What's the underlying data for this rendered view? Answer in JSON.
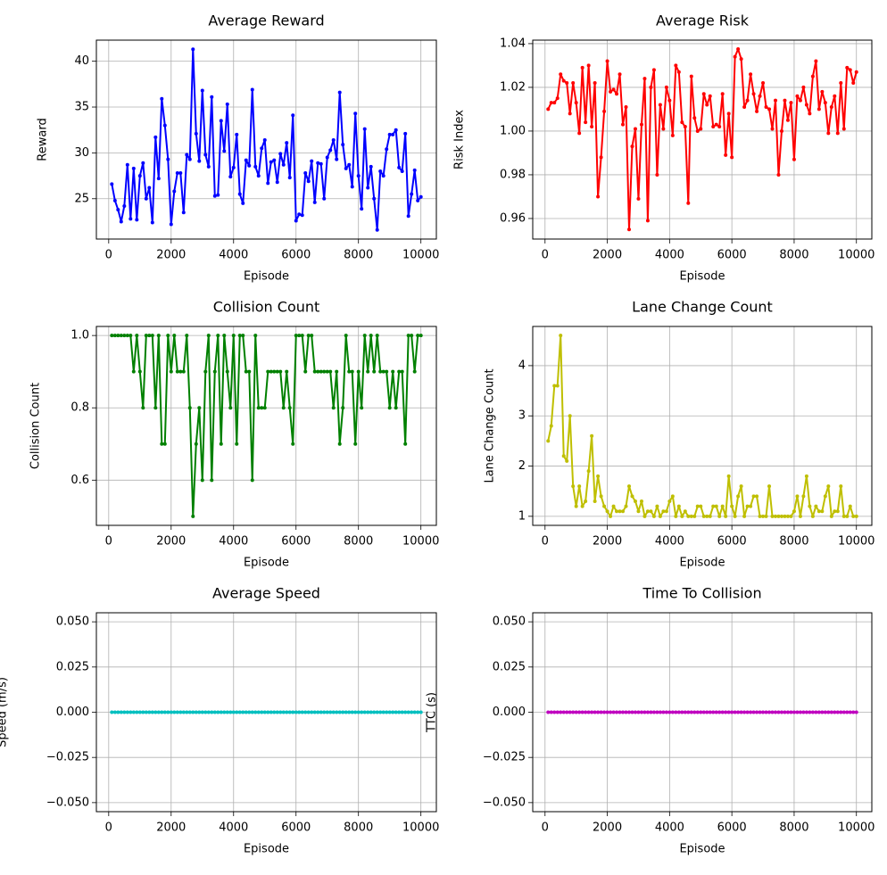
{
  "chart_data": [
    {
      "type": "line",
      "title": "Average Reward",
      "xlabel": "Episode",
      "ylabel": "Reward",
      "color": "#0000ff",
      "grid": true,
      "x": [
        100,
        200,
        300,
        400,
        500,
        600,
        700,
        800,
        900,
        1000,
        1100,
        1200,
        1300,
        1400,
        1500,
        1600,
        1700,
        1800,
        1900,
        2000,
        2100,
        2200,
        2300,
        2400,
        2500,
        2600,
        2700,
        2800,
        2900,
        3000,
        3100,
        3200,
        3300,
        3400,
        3500,
        3600,
        3700,
        3800,
        3900,
        4000,
        4100,
        4200,
        4300,
        4400,
        4500,
        4600,
        4700,
        4800,
        4900,
        5000,
        5100,
        5200,
        5300,
        5400,
        5500,
        5600,
        5700,
        5800,
        5900,
        6000,
        6100,
        6200,
        6300,
        6400,
        6500,
        6600,
        6700,
        6800,
        6900,
        7000,
        7100,
        7200,
        7300,
        7400,
        7500,
        7600,
        7700,
        7800,
        7900,
        8000,
        8100,
        8200,
        8300,
        8400,
        8500,
        8600,
        8700,
        8800,
        8900,
        9000,
        9100,
        9200,
        9300,
        9400,
        9500,
        9600,
        9700,
        9800,
        9900,
        10000
      ],
      "values": [
        26.6,
        24.8,
        23.8,
        22.5,
        24.2,
        28.7,
        22.8,
        28.3,
        22.7,
        27.5,
        28.9,
        25.0,
        26.2,
        22.4,
        31.7,
        27.2,
        35.9,
        33.0,
        29.3,
        22.2,
        25.8,
        27.8,
        27.8,
        23.5,
        29.8,
        29.3,
        41.3,
        32.1,
        29.1,
        36.8,
        29.8,
        28.5,
        36.1,
        25.3,
        25.4,
        33.5,
        30.2,
        35.3,
        27.4,
        28.4,
        32.0,
        25.5,
        24.5,
        29.2,
        28.6,
        36.9,
        28.5,
        27.5,
        30.5,
        31.4,
        26.7,
        29.0,
        29.2,
        26.8,
        29.9,
        28.7,
        31.1,
        27.3,
        34.1,
        22.6,
        23.3,
        23.2,
        27.8,
        26.9,
        29.1,
        24.6,
        28.9,
        28.8,
        25.0,
        29.5,
        30.3,
        31.4,
        29.3,
        36.6,
        30.9,
        28.3,
        28.7,
        26.3,
        34.3,
        27.5,
        23.9,
        32.6,
        26.2,
        28.5,
        25.0,
        21.6,
        28.0,
        27.5,
        30.4,
        32.0,
        32.0,
        32.5,
        28.4,
        28.0,
        32.1,
        23.1,
        25.5,
        28.1,
        24.8,
        25.2
      ],
      "xlim": [
        -395,
        10495
      ],
      "xticks": [
        0,
        2000,
        4000,
        6000,
        8000,
        10000
      ],
      "ylim": [
        20.6,
        42.3
      ],
      "yticks": [
        25,
        30,
        35,
        40
      ]
    },
    {
      "type": "line",
      "title": "Average Risk",
      "xlabel": "Episode",
      "ylabel": "Risk Index",
      "color": "#ff0000",
      "grid": true,
      "x": [
        100,
        200,
        300,
        400,
        500,
        600,
        700,
        800,
        900,
        1000,
        1100,
        1200,
        1300,
        1400,
        1500,
        1600,
        1700,
        1800,
        1900,
        2000,
        2100,
        2200,
        2300,
        2400,
        2500,
        2600,
        2700,
        2800,
        2900,
        3000,
        3100,
        3200,
        3300,
        3400,
        3500,
        3600,
        3700,
        3800,
        3900,
        4000,
        4100,
        4200,
        4300,
        4400,
        4500,
        4600,
        4700,
        4800,
        4900,
        5000,
        5100,
        5200,
        5300,
        5400,
        5500,
        5600,
        5700,
        5800,
        5900,
        6000,
        6100,
        6200,
        6300,
        6400,
        6500,
        6600,
        6700,
        6800,
        6900,
        7000,
        7100,
        7200,
        7300,
        7400,
        7500,
        7600,
        7700,
        7800,
        7900,
        8000,
        8100,
        8200,
        8300,
        8400,
        8500,
        8600,
        8700,
        8800,
        8900,
        9000,
        9100,
        9200,
        9300,
        9400,
        9500,
        9600,
        9700,
        9800,
        9900,
        10000
      ],
      "values": [
        1.01,
        1.013,
        1.013,
        1.015,
        1.026,
        1.023,
        1.022,
        1.008,
        1.022,
        1.013,
        0.999,
        1.029,
        1.004,
        1.03,
        1.002,
        1.022,
        0.97,
        0.988,
        1.009,
        1.032,
        1.018,
        1.019,
        1.017,
        1.026,
        1.003,
        1.011,
        0.955,
        0.993,
        1.001,
        0.969,
        1.003,
        1.024,
        0.959,
        1.02,
        1.028,
        0.98,
        1.012,
        1.001,
        1.02,
        1.014,
        0.998,
        1.03,
        1.027,
        1.004,
        1.002,
        0.967,
        1.025,
        1.006,
        1.0,
        1.001,
        1.017,
        1.012,
        1.016,
        1.002,
        1.003,
        1.002,
        1.017,
        0.989,
        1.008,
        0.988,
        1.034,
        1.0375,
        1.033,
        1.011,
        1.014,
        1.026,
        1.017,
        1.009,
        1.016,
        1.022,
        1.011,
        1.01,
        1.001,
        1.014,
        0.98,
        1.0,
        1.014,
        1.005,
        1.013,
        0.987,
        1.016,
        1.014,
        1.02,
        1.012,
        1.008,
        1.025,
        1.032,
        1.01,
        1.018,
        1.013,
        0.999,
        1.011,
        1.016,
        0.999,
        1.022,
        1.001,
        1.029,
        1.028,
        1.022,
        1.027
      ],
      "xlim": [
        -395,
        10495
      ],
      "xticks": [
        0,
        2000,
        4000,
        6000,
        8000,
        10000
      ],
      "ylim": [
        0.9506,
        1.0416
      ],
      "yticks": [
        0.96,
        0.98,
        {
          "value": 1,
          "label": "1.00"
        },
        1.02,
        1.04
      ]
    },
    {
      "type": "line",
      "title": "Collision Count",
      "xlabel": "Episode",
      "ylabel": "Collision Count",
      "color": "#008000",
      "grid": true,
      "x": [
        100,
        200,
        300,
        400,
        500,
        600,
        700,
        800,
        900,
        1000,
        1100,
        1200,
        1300,
        1400,
        1500,
        1600,
        1700,
        1800,
        1900,
        2000,
        2100,
        2200,
        2300,
        2400,
        2500,
        2600,
        2700,
        2800,
        2900,
        3000,
        3100,
        3200,
        3300,
        3400,
        3500,
        3600,
        3700,
        3800,
        3900,
        4000,
        4100,
        4200,
        4300,
        4400,
        4500,
        4600,
        4700,
        4800,
        4900,
        5000,
        5100,
        5200,
        5300,
        5400,
        5500,
        5600,
        5700,
        5800,
        5900,
        6000,
        6100,
        6200,
        6300,
        6400,
        6500,
        6600,
        6700,
        6800,
        6900,
        7000,
        7100,
        7200,
        7300,
        7400,
        7500,
        7600,
        7700,
        7800,
        7900,
        8000,
        8100,
        8200,
        8300,
        8400,
        8500,
        8600,
        8700,
        8800,
        8900,
        9000,
        9100,
        9200,
        9300,
        9400,
        9500,
        9600,
        9700,
        9800,
        9900,
        10000
      ],
      "values": [
        1,
        1,
        1,
        1,
        1,
        1,
        1,
        0.9,
        1,
        0.9,
        0.8,
        1,
        1,
        1,
        0.8,
        1,
        0.7,
        0.7,
        1,
        0.9,
        1,
        0.9,
        0.9,
        0.9,
        1,
        0.8,
        0.5,
        0.7,
        0.8,
        0.6,
        0.9,
        1,
        0.6,
        0.9,
        1,
        0.7,
        1,
        0.9,
        0.8,
        1,
        0.7,
        1,
        1,
        0.9,
        0.9,
        0.6,
        1,
        0.8,
        0.8,
        0.8,
        0.9,
        0.9,
        0.9,
        0.9,
        0.9,
        0.8,
        0.9,
        0.8,
        0.7,
        1,
        1,
        1,
        0.9,
        1,
        1,
        0.9,
        0.9,
        0.9,
        0.9,
        0.9,
        0.9,
        0.8,
        0.9,
        0.7,
        0.8,
        1,
        0.9,
        0.9,
        0.7,
        0.9,
        0.8,
        1,
        0.9,
        1,
        0.9,
        1,
        0.9,
        0.9,
        0.9,
        0.8,
        0.9,
        0.8,
        0.9,
        0.9,
        0.7,
        1,
        1,
        0.9,
        1,
        1
      ],
      "xlim": [
        -395,
        10495
      ],
      "xticks": [
        0,
        2000,
        4000,
        6000,
        8000,
        10000
      ],
      "ylim": [
        0.475,
        1.025
      ],
      "yticks": [
        0.6,
        0.8,
        {
          "value": 1,
          "label": "1.0"
        }
      ]
    },
    {
      "type": "line",
      "title": "Lane Change Count",
      "xlabel": "Episode",
      "ylabel": "Lane Change Count",
      "color": "#bfbf00",
      "grid": true,
      "x": [
        100,
        200,
        300,
        400,
        500,
        600,
        700,
        800,
        900,
        1000,
        1100,
        1200,
        1300,
        1400,
        1500,
        1600,
        1700,
        1800,
        1900,
        2000,
        2100,
        2200,
        2300,
        2400,
        2500,
        2600,
        2700,
        2800,
        2900,
        3000,
        3100,
        3200,
        3300,
        3400,
        3500,
        3600,
        3700,
        3800,
        3900,
        4000,
        4100,
        4200,
        4300,
        4400,
        4500,
        4600,
        4700,
        4800,
        4900,
        5000,
        5100,
        5200,
        5300,
        5400,
        5500,
        5600,
        5700,
        5800,
        5900,
        6000,
        6100,
        6200,
        6300,
        6400,
        6500,
        6600,
        6700,
        6800,
        6900,
        7000,
        7100,
        7200,
        7300,
        7400,
        7500,
        7600,
        7700,
        7800,
        7900,
        8000,
        8100,
        8200,
        8300,
        8400,
        8500,
        8600,
        8700,
        8800,
        8900,
        9000,
        9100,
        9200,
        9300,
        9400,
        9500,
        9600,
        9700,
        9800,
        9900,
        10000
      ],
      "values": [
        2.5,
        2.8,
        3.6,
        3.6,
        4.6,
        2.2,
        2.1,
        3.0,
        1.6,
        1.2,
        1.6,
        1.2,
        1.3,
        1.9,
        2.6,
        1.3,
        1.8,
        1.4,
        1.2,
        1.1,
        1.0,
        1.2,
        1.1,
        1.1,
        1.1,
        1.2,
        1.6,
        1.4,
        1.3,
        1.1,
        1.3,
        1.0,
        1.1,
        1.1,
        1.0,
        1.2,
        1.0,
        1.1,
        1.1,
        1.3,
        1.4,
        1.0,
        1.2,
        1.0,
        1.1,
        1.0,
        1.0,
        1.0,
        1.2,
        1.2,
        1.0,
        1.0,
        1.0,
        1.2,
        1.2,
        1.0,
        1.2,
        1.0,
        1.8,
        1.2,
        1.0,
        1.4,
        1.6,
        1.0,
        1.2,
        1.2,
        1.4,
        1.4,
        1.0,
        1.0,
        1.0,
        1.6,
        1.0,
        1.0,
        1.0,
        1.0,
        1.0,
        1.0,
        1.0,
        1.1,
        1.4,
        1.0,
        1.4,
        1.8,
        1.2,
        1.0,
        1.2,
        1.1,
        1.1,
        1.4,
        1.6,
        1.0,
        1.1,
        1.1,
        1.6,
        1.0,
        1.0,
        1.2,
        1.0,
        1.0
      ],
      "xlim": [
        -395,
        10495
      ],
      "xticks": [
        0,
        2000,
        4000,
        6000,
        8000,
        10000
      ],
      "ylim": [
        0.82,
        4.78
      ],
      "yticks": [
        1,
        2,
        3,
        4
      ]
    },
    {
      "type": "line",
      "title": "Average Speed",
      "xlabel": "Episode",
      "ylabel": "Speed (m/s)",
      "color": "#00bfbf",
      "grid": true,
      "x": [
        100,
        200,
        300,
        400,
        500,
        600,
        700,
        800,
        900,
        1000,
        1100,
        1200,
        1300,
        1400,
        1500,
        1600,
        1700,
        1800,
        1900,
        2000,
        2100,
        2200,
        2300,
        2400,
        2500,
        2600,
        2700,
        2800,
        2900,
        3000,
        3100,
        3200,
        3300,
        3400,
        3500,
        3600,
        3700,
        3800,
        3900,
        4000,
        4100,
        4200,
        4300,
        4400,
        4500,
        4600,
        4700,
        4800,
        4900,
        5000,
        5100,
        5200,
        5300,
        5400,
        5500,
        5600,
        5700,
        5800,
        5900,
        6000,
        6100,
        6200,
        6300,
        6400,
        6500,
        6600,
        6700,
        6800,
        6900,
        7000,
        7100,
        7200,
        7300,
        7400,
        7500,
        7600,
        7700,
        7800,
        7900,
        8000,
        8100,
        8200,
        8300,
        8400,
        8500,
        8600,
        8700,
        8800,
        8900,
        9000,
        9100,
        9200,
        9300,
        9400,
        9500,
        9600,
        9700,
        9800,
        9900,
        10000
      ],
      "values": [
        0,
        0,
        0,
        0,
        0,
        0,
        0,
        0,
        0,
        0,
        0,
        0,
        0,
        0,
        0,
        0,
        0,
        0,
        0,
        0,
        0,
        0,
        0,
        0,
        0,
        0,
        0,
        0,
        0,
        0,
        0,
        0,
        0,
        0,
        0,
        0,
        0,
        0,
        0,
        0,
        0,
        0,
        0,
        0,
        0,
        0,
        0,
        0,
        0,
        0,
        0,
        0,
        0,
        0,
        0,
        0,
        0,
        0,
        0,
        0,
        0,
        0,
        0,
        0,
        0,
        0,
        0,
        0,
        0,
        0,
        0,
        0,
        0,
        0,
        0,
        0,
        0,
        0,
        0,
        0,
        0,
        0,
        0,
        0,
        0,
        0,
        0,
        0,
        0,
        0,
        0,
        0,
        0,
        0,
        0,
        0,
        0,
        0,
        0,
        0
      ],
      "xlim": [
        -395,
        10495
      ],
      "xticks": [
        0,
        2000,
        4000,
        6000,
        8000,
        10000
      ],
      "ylim": [
        -0.055,
        0.055
      ],
      "yticks": [
        {
          "value": -0.05,
          "label": "−0.050"
        },
        {
          "value": -0.025,
          "label": "−0.025"
        },
        {
          "value": 0,
          "label": "0.000"
        },
        {
          "value": 0.025,
          "label": "0.025"
        },
        {
          "value": 0.05,
          "label": "0.050"
        }
      ]
    },
    {
      "type": "line",
      "title": "Time To Collision",
      "xlabel": "Episode",
      "ylabel": "TTC (s)",
      "color": "#bf00bf",
      "grid": true,
      "x": [
        100,
        200,
        300,
        400,
        500,
        600,
        700,
        800,
        900,
        1000,
        1100,
        1200,
        1300,
        1400,
        1500,
        1600,
        1700,
        1800,
        1900,
        2000,
        2100,
        2200,
        2300,
        2400,
        2500,
        2600,
        2700,
        2800,
        2900,
        3000,
        3100,
        3200,
        3300,
        3400,
        3500,
        3600,
        3700,
        3800,
        3900,
        4000,
        4100,
        4200,
        4300,
        4400,
        4500,
        4600,
        4700,
        4800,
        4900,
        5000,
        5100,
        5200,
        5300,
        5400,
        5500,
        5600,
        5700,
        5800,
        5900,
        6000,
        6100,
        6200,
        6300,
        6400,
        6500,
        6600,
        6700,
        6800,
        6900,
        7000,
        7100,
        7200,
        7300,
        7400,
        7500,
        7600,
        7700,
        7800,
        7900,
        8000,
        8100,
        8200,
        8300,
        8400,
        8500,
        8600,
        8700,
        8800,
        8900,
        9000,
        9100,
        9200,
        9300,
        9400,
        9500,
        9600,
        9700,
        9800,
        9900,
        10000
      ],
      "values": [
        0,
        0,
        0,
        0,
        0,
        0,
        0,
        0,
        0,
        0,
        0,
        0,
        0,
        0,
        0,
        0,
        0,
        0,
        0,
        0,
        0,
        0,
        0,
        0,
        0,
        0,
        0,
        0,
        0,
        0,
        0,
        0,
        0,
        0,
        0,
        0,
        0,
        0,
        0,
        0,
        0,
        0,
        0,
        0,
        0,
        0,
        0,
        0,
        0,
        0,
        0,
        0,
        0,
        0,
        0,
        0,
        0,
        0,
        0,
        0,
        0,
        0,
        0,
        0,
        0,
        0,
        0,
        0,
        0,
        0,
        0,
        0,
        0,
        0,
        0,
        0,
        0,
        0,
        0,
        0,
        0,
        0,
        0,
        0,
        0,
        0,
        0,
        0,
        0,
        0,
        0,
        0,
        0,
        0,
        0,
        0,
        0,
        0,
        0,
        0
      ],
      "xlim": [
        -395,
        10495
      ],
      "xticks": [
        0,
        2000,
        4000,
        6000,
        8000,
        10000
      ],
      "ylim": [
        -0.055,
        0.055
      ],
      "yticks": [
        {
          "value": -0.05,
          "label": "−0.050"
        },
        {
          "value": -0.025,
          "label": "−0.025"
        },
        {
          "value": 0,
          "label": "0.000"
        },
        {
          "value": 0.025,
          "label": "0.025"
        },
        {
          "value": 0.05,
          "label": "0.050"
        }
      ]
    }
  ]
}
